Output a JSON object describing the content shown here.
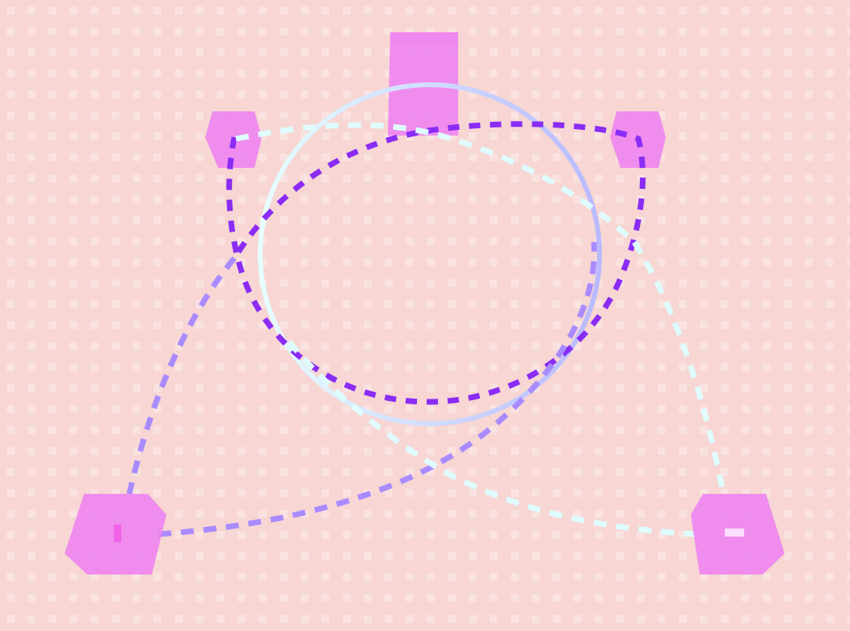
{
  "scene": {
    "name": "3d-viewport",
    "colors": {
      "floor": "#f7d6d3",
      "floor_stud": "#fbe6e4",
      "block": "#ee86ef",
      "purple_path": "#8a2cf5",
      "lavender_path": "#a98bff",
      "cyan_path": "#dffcff",
      "ring_gradient_start": "#e6ffff",
      "ring_gradient_end": "#b9b9ff"
    },
    "blocks": [
      {
        "name": "block-top"
      },
      {
        "name": "block-upper-left"
      },
      {
        "name": "block-upper-right"
      },
      {
        "name": "block-lower-left"
      },
      {
        "name": "block-lower-right"
      }
    ],
    "paths": [
      {
        "name": "purple-dashed-loop"
      },
      {
        "name": "lavender-dashed-curve"
      },
      {
        "name": "cyan-dashed-curve"
      },
      {
        "name": "gradient-ring"
      }
    ]
  }
}
